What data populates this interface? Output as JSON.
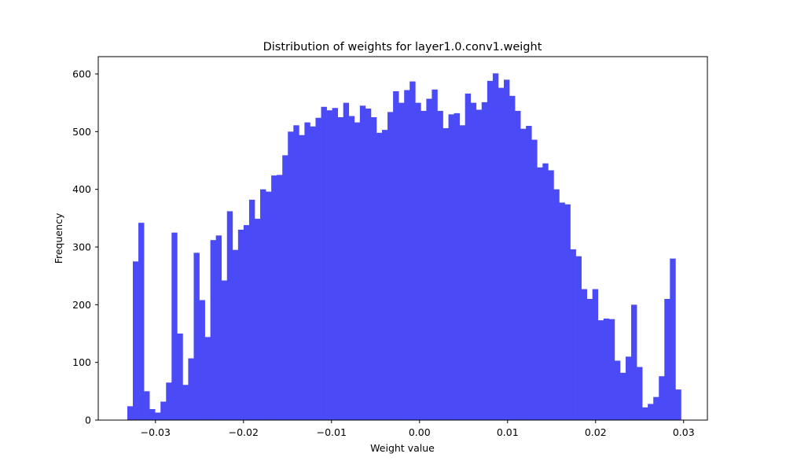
{
  "chart_data": {
    "type": "bar",
    "title": "Distribution of weights for layer1.0.conv1.weight",
    "xlabel": "Weight value",
    "ylabel": "Frequency",
    "bar_color": "#4a4af7",
    "xlim": [
      -0.0365,
      0.0327
    ],
    "ylim": [
      0,
      630
    ],
    "x_ticks": [
      {
        "value": -0.03,
        "label": "−0.03"
      },
      {
        "value": -0.02,
        "label": "−0.02"
      },
      {
        "value": -0.01,
        "label": "−0.01"
      },
      {
        "value": 0.0,
        "label": "0.00"
      },
      {
        "value": 0.01,
        "label": "0.01"
      },
      {
        "value": 0.02,
        "label": "0.02"
      },
      {
        "value": 0.03,
        "label": "0.03"
      }
    ],
    "y_ticks": [
      {
        "value": 0,
        "label": "0"
      },
      {
        "value": 100,
        "label": "100"
      },
      {
        "value": 200,
        "label": "200"
      },
      {
        "value": 300,
        "label": "300"
      },
      {
        "value": 400,
        "label": "400"
      },
      {
        "value": 500,
        "label": "500"
      },
      {
        "value": 600,
        "label": "600"
      }
    ],
    "bin_start": -0.0332,
    "bin_end": 0.0297,
    "values": [
      24,
      275,
      342,
      50,
      19,
      13,
      32,
      65,
      325,
      150,
      61,
      107,
      290,
      208,
      144,
      312,
      320,
      242,
      362,
      295,
      330,
      338,
      382,
      349,
      400,
      396,
      424,
      425,
      459,
      500,
      511,
      494,
      516,
      509,
      524,
      543,
      537,
      541,
      525,
      550,
      527,
      516,
      545,
      540,
      525,
      498,
      503,
      534,
      570,
      550,
      572,
      587,
      550,
      536,
      557,
      573,
      536,
      506,
      530,
      532,
      511,
      566,
      550,
      538,
      551,
      588,
      601,
      576,
      590,
      562,
      536,
      505,
      510,
      486,
      438,
      445,
      433,
      400,
      377,
      374,
      296,
      284,
      227,
      210,
      227,
      173,
      176,
      175,
      103,
      82,
      110,
      200,
      92,
      22,
      28,
      40,
      76,
      210,
      280,
      53
    ]
  }
}
